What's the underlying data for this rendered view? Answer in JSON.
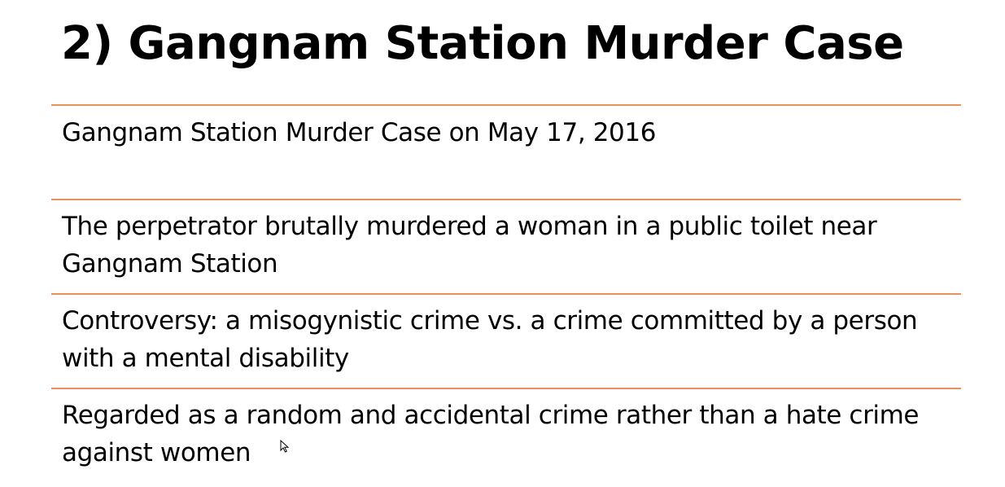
{
  "slide": {
    "title": "2) Gangnam Station Murder Case",
    "items": [
      {
        "text": "Gangnam Station Murder Case on May 17, 2016"
      },
      {
        "text": "The perpetrator brutally murdered a woman in a public toilet near Gangnam Station"
      },
      {
        "text": "Controversy: a misogynistic crime vs. a crime committed by a person with a mental disability"
      },
      {
        "text": "Regarded as a random and accidental crime rather than a hate crime against women"
      }
    ],
    "rule_color": "#e8925a"
  },
  "cursor": {
    "icon": "mouse-pointer-icon"
  }
}
